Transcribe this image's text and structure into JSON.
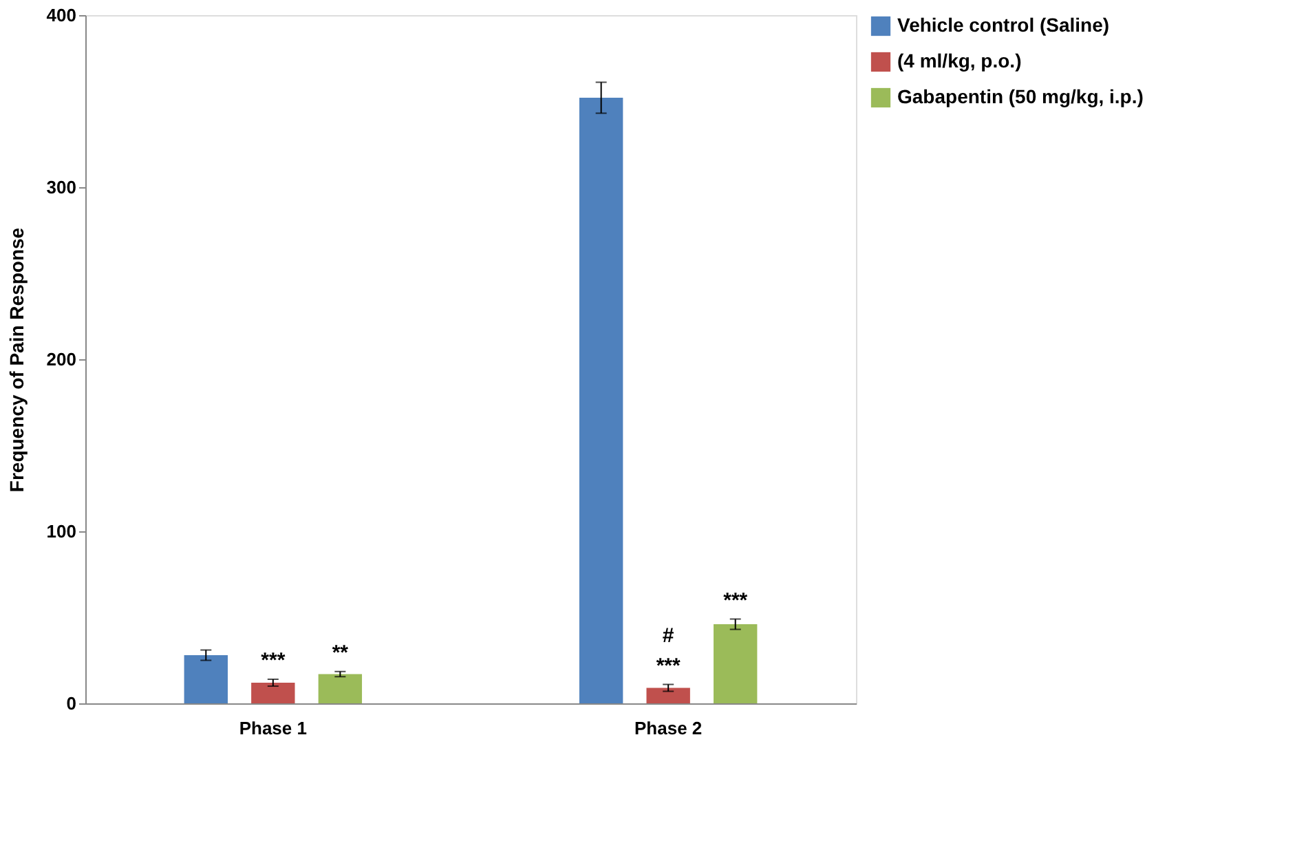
{
  "chart_data": {
    "type": "bar",
    "ylabel": "Frequency of Pain Response",
    "categories": [
      "Phase 1",
      "Phase 2"
    ],
    "series": [
      {
        "name": "Vehicle control (Saline)",
        "color": "#4f81bd",
        "values": [
          28,
          352
        ],
        "errors": [
          3,
          9
        ]
      },
      {
        "name": "(4 ml/kg, p.o.)",
        "color": "#c0504d",
        "values": [
          12,
          9
        ],
        "errors": [
          2,
          2
        ]
      },
      {
        "name": "Gabapentin (50 mg/kg, i.p.)",
        "color": "#9bbb59",
        "values": [
          17,
          46
        ],
        "errors": [
          1.5,
          3
        ]
      }
    ],
    "ylim": [
      0,
      400
    ],
    "yticks": [
      0,
      100,
      200,
      300,
      400
    ],
    "grid": false,
    "legend": "right",
    "annotations": [
      "***",
      "**",
      "#",
      "***",
      "***"
    ]
  }
}
